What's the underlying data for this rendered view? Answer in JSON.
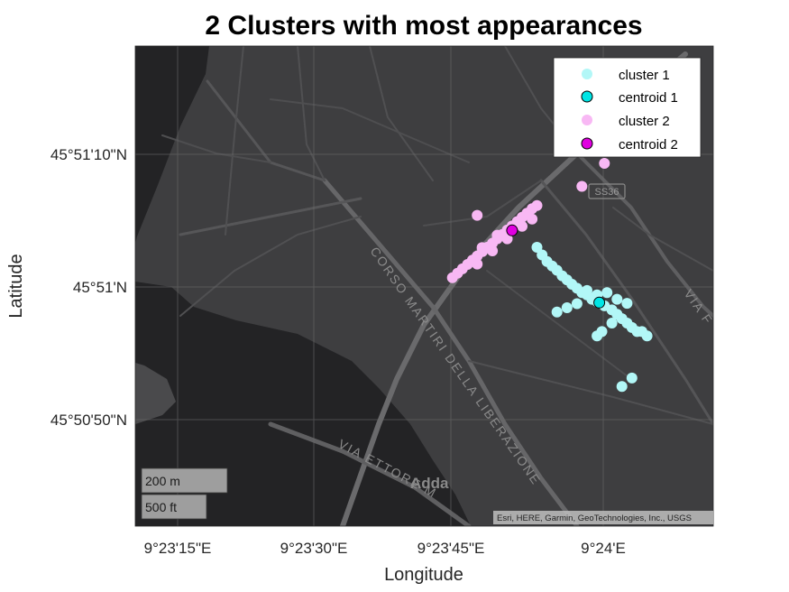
{
  "chart_data": {
    "type": "scatter",
    "title": "2 Clusters with most appearances",
    "xlabel": "Longitude",
    "ylabel": "Latitude",
    "xticks": [
      "9°23'15\"E",
      "9°23'30\"E",
      "9°23'45\"E",
      "9°24'E"
    ],
    "yticks": [
      "45°51'10\"N",
      "45°51'N",
      "45°50'50\"N"
    ],
    "xlim_deg": [
      9.3846,
      9.4025
    ],
    "ylim_deg": [
      45.8434,
      45.8565
    ],
    "grid": true,
    "legend_position": "top-right",
    "legend": [
      "cluster 1",
      "centroid 1",
      "cluster 2",
      "centroid 2"
    ],
    "basemap_labels": {
      "street_main": "CORSO MARTIRI DELLA LIBERAZIONE",
      "street_lower": "VIA ETTORE M",
      "street_right": "VIA F",
      "river": "Adda",
      "road_badge": "SS36"
    },
    "scalebar": [
      "200 m",
      "500 ft"
    ],
    "attribution": "Esri, HERE, Garmin, GeoTechnologies, Inc., USGS",
    "colors": {
      "cluster1": "#b2f7f7",
      "centroid1": "#00e5e5",
      "cluster2": "#f8b8f4",
      "centroid2": "#e000e0",
      "map_bg": "#3e3e40",
      "water": "#232325"
    },
    "series": [
      {
        "name": "cluster 2",
        "marker": "point",
        "points": [
          [
            9.39442,
            45.85018
          ],
          [
            9.39458,
            45.8503
          ],
          [
            9.39473,
            45.85042
          ],
          [
            9.39489,
            45.85054
          ],
          [
            9.39504,
            45.85066
          ],
          [
            9.39519,
            45.85077
          ],
          [
            9.39535,
            45.85089
          ],
          [
            9.3955,
            45.85101
          ],
          [
            9.39566,
            45.85112
          ],
          [
            9.39581,
            45.85124
          ],
          [
            9.39597,
            45.85136
          ],
          [
            9.39612,
            45.85148
          ],
          [
            9.39627,
            45.85159
          ],
          [
            9.39643,
            45.85171
          ],
          [
            9.39658,
            45.85183
          ],
          [
            9.39673,
            45.85194
          ],
          [
            9.39689,
            45.85206
          ],
          [
            9.39704,
            45.85215
          ],
          [
            9.39519,
            45.85055
          ],
          [
            9.39566,
            45.85091
          ],
          [
            9.39612,
            45.85124
          ],
          [
            9.39658,
            45.85158
          ],
          [
            9.39689,
            45.85178
          ],
          [
            9.39534,
            45.851
          ],
          [
            9.39581,
            45.85134
          ],
          [
            9.39519,
            45.85188
          ],
          [
            9.39843,
            45.85267
          ],
          [
            9.39913,
            45.8533
          ]
        ]
      },
      {
        "name": "centroid 2",
        "marker": "centroid",
        "points": [
          [
            9.39627,
            45.85147
          ]
        ]
      },
      {
        "name": "cluster 1",
        "marker": "point",
        "points": [
          [
            9.39704,
            45.85101
          ],
          [
            9.3972,
            45.8508
          ],
          [
            9.39735,
            45.85062
          ],
          [
            9.39751,
            45.8505
          ],
          [
            9.39766,
            45.85038
          ],
          [
            9.39782,
            45.85023
          ],
          [
            9.39797,
            45.85012
          ],
          [
            9.39812,
            45.85
          ],
          [
            9.39828,
            45.84989
          ],
          [
            9.39843,
            45.84977
          ],
          [
            9.39859,
            45.84971
          ],
          [
            9.39874,
            45.84959
          ],
          [
            9.3989,
            45.84953
          ],
          [
            9.39913,
            45.84941
          ],
          [
            9.39936,
            45.8493
          ],
          [
            9.39952,
            45.84918
          ],
          [
            9.39967,
            45.84906
          ],
          [
            9.39983,
            45.84894
          ],
          [
            9.39998,
            45.84882
          ],
          [
            9.40014,
            45.84871
          ],
          [
            9.39859,
            45.84983
          ],
          [
            9.3989,
            45.84971
          ],
          [
            9.39921,
            45.84977
          ],
          [
            9.39952,
            45.84959
          ],
          [
            9.39983,
            45.84948
          ],
          [
            9.39936,
            45.84894
          ],
          [
            9.39905,
            45.84871
          ],
          [
            9.3989,
            45.84859
          ],
          [
            9.39766,
            45.84924
          ],
          [
            9.39797,
            45.84936
          ],
          [
            9.39828,
            45.84947
          ],
          [
            9.39998,
            45.84744
          ],
          [
            9.39967,
            45.84721
          ],
          [
            9.40045,
            45.84859
          ],
          [
            9.40029,
            45.84871
          ]
        ]
      },
      {
        "name": "centroid 1",
        "marker": "centroid",
        "points": [
          [
            9.39897,
            45.8495
          ]
        ]
      }
    ]
  }
}
